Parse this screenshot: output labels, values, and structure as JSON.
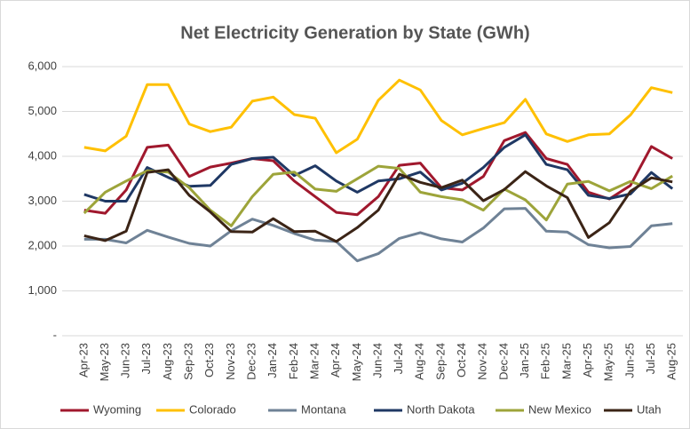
{
  "chart_data": {
    "type": "line",
    "title": "Net Electricity Generation by State  (GWh)",
    "categories": [
      "Apr-23",
      "May-23",
      "Jun-23",
      "Jul-23",
      "Aug-23",
      "Sep-23",
      "Oct-23",
      "Nov-23",
      "Dec-23",
      "Jan-24",
      "Feb-24",
      "Mar-24",
      "Apr-24",
      "May-24",
      "Jun-24",
      "Jul-24",
      "Aug-24",
      "Sep-24",
      "Oct-24",
      "Nov-24",
      "Dec-24",
      "Jan-25",
      "Feb-25",
      "Mar-25",
      "Apr-25",
      "May-25",
      "Jun-25",
      "Jul-25",
      "Aug-25"
    ],
    "series": [
      {
        "name": "Wyoming",
        "color": "#a0182d",
        "values": [
          2800,
          2730,
          3250,
          4200,
          4250,
          3550,
          3760,
          3850,
          3950,
          3900,
          3450,
          3100,
          2750,
          2700,
          3100,
          3800,
          3850,
          3300,
          3250,
          3550,
          4350,
          4530,
          3950,
          3820,
          3200,
          3050,
          3350,
          4220,
          3950
        ]
      },
      {
        "name": "Colorado",
        "color": "#ffc000",
        "values": [
          4200,
          4120,
          4450,
          5600,
          5600,
          4720,
          4550,
          4650,
          5230,
          5320,
          4930,
          4850,
          4080,
          4380,
          5250,
          5700,
          5480,
          4800,
          4480,
          4620,
          4750,
          5270,
          4500,
          4330,
          4480,
          4500,
          4920,
          5530,
          5420
        ]
      },
      {
        "name": "Montana",
        "color": "#6f8296",
        "values": [
          2150,
          2150,
          2070,
          2350,
          2200,
          2060,
          2000,
          2340,
          2600,
          2460,
          2280,
          2130,
          2100,
          1670,
          1830,
          2170,
          2300,
          2160,
          2090,
          2400,
          2830,
          2840,
          2330,
          2310,
          2030,
          1960,
          1990,
          2450,
          2500
        ]
      },
      {
        "name": "North Dakota",
        "color": "#1f3864",
        "values": [
          3150,
          3000,
          3000,
          3750,
          3530,
          3330,
          3350,
          3820,
          3950,
          3980,
          3570,
          3790,
          3450,
          3200,
          3450,
          3500,
          3650,
          3250,
          3400,
          3750,
          4200,
          4480,
          3820,
          3700,
          3130,
          3060,
          3160,
          3640,
          3280
        ]
      },
      {
        "name": "New Mexico",
        "color": "#9da43a",
        "values": [
          2730,
          3200,
          3450,
          3680,
          3650,
          3300,
          2800,
          2450,
          3100,
          3600,
          3650,
          3270,
          3220,
          3500,
          3780,
          3730,
          3200,
          3100,
          3030,
          2800,
          3270,
          3030,
          2580,
          3380,
          3440,
          3230,
          3440,
          3280,
          3560
        ]
      },
      {
        "name": "Utah",
        "color": "#3b2416",
        "values": [
          2230,
          2120,
          2330,
          3640,
          3700,
          3130,
          2760,
          2320,
          2310,
          2610,
          2320,
          2330,
          2100,
          2410,
          2800,
          3600,
          3420,
          3300,
          3470,
          3010,
          3260,
          3660,
          3340,
          3080,
          2190,
          2520,
          3220,
          3520,
          3430
        ]
      }
    ],
    "ylim": [
      0,
      6000
    ],
    "yticks": [
      {
        "value": 0,
        "label": "-"
      },
      {
        "value": 1000,
        "label": "1,000"
      },
      {
        "value": 2000,
        "label": "2,000"
      },
      {
        "value": 3000,
        "label": "3,000"
      },
      {
        "value": 4000,
        "label": "4,000"
      },
      {
        "value": 5000,
        "label": "5,000"
      },
      {
        "value": 6000,
        "label": "6,000"
      }
    ],
    "grid": true,
    "legend": "bottom"
  }
}
